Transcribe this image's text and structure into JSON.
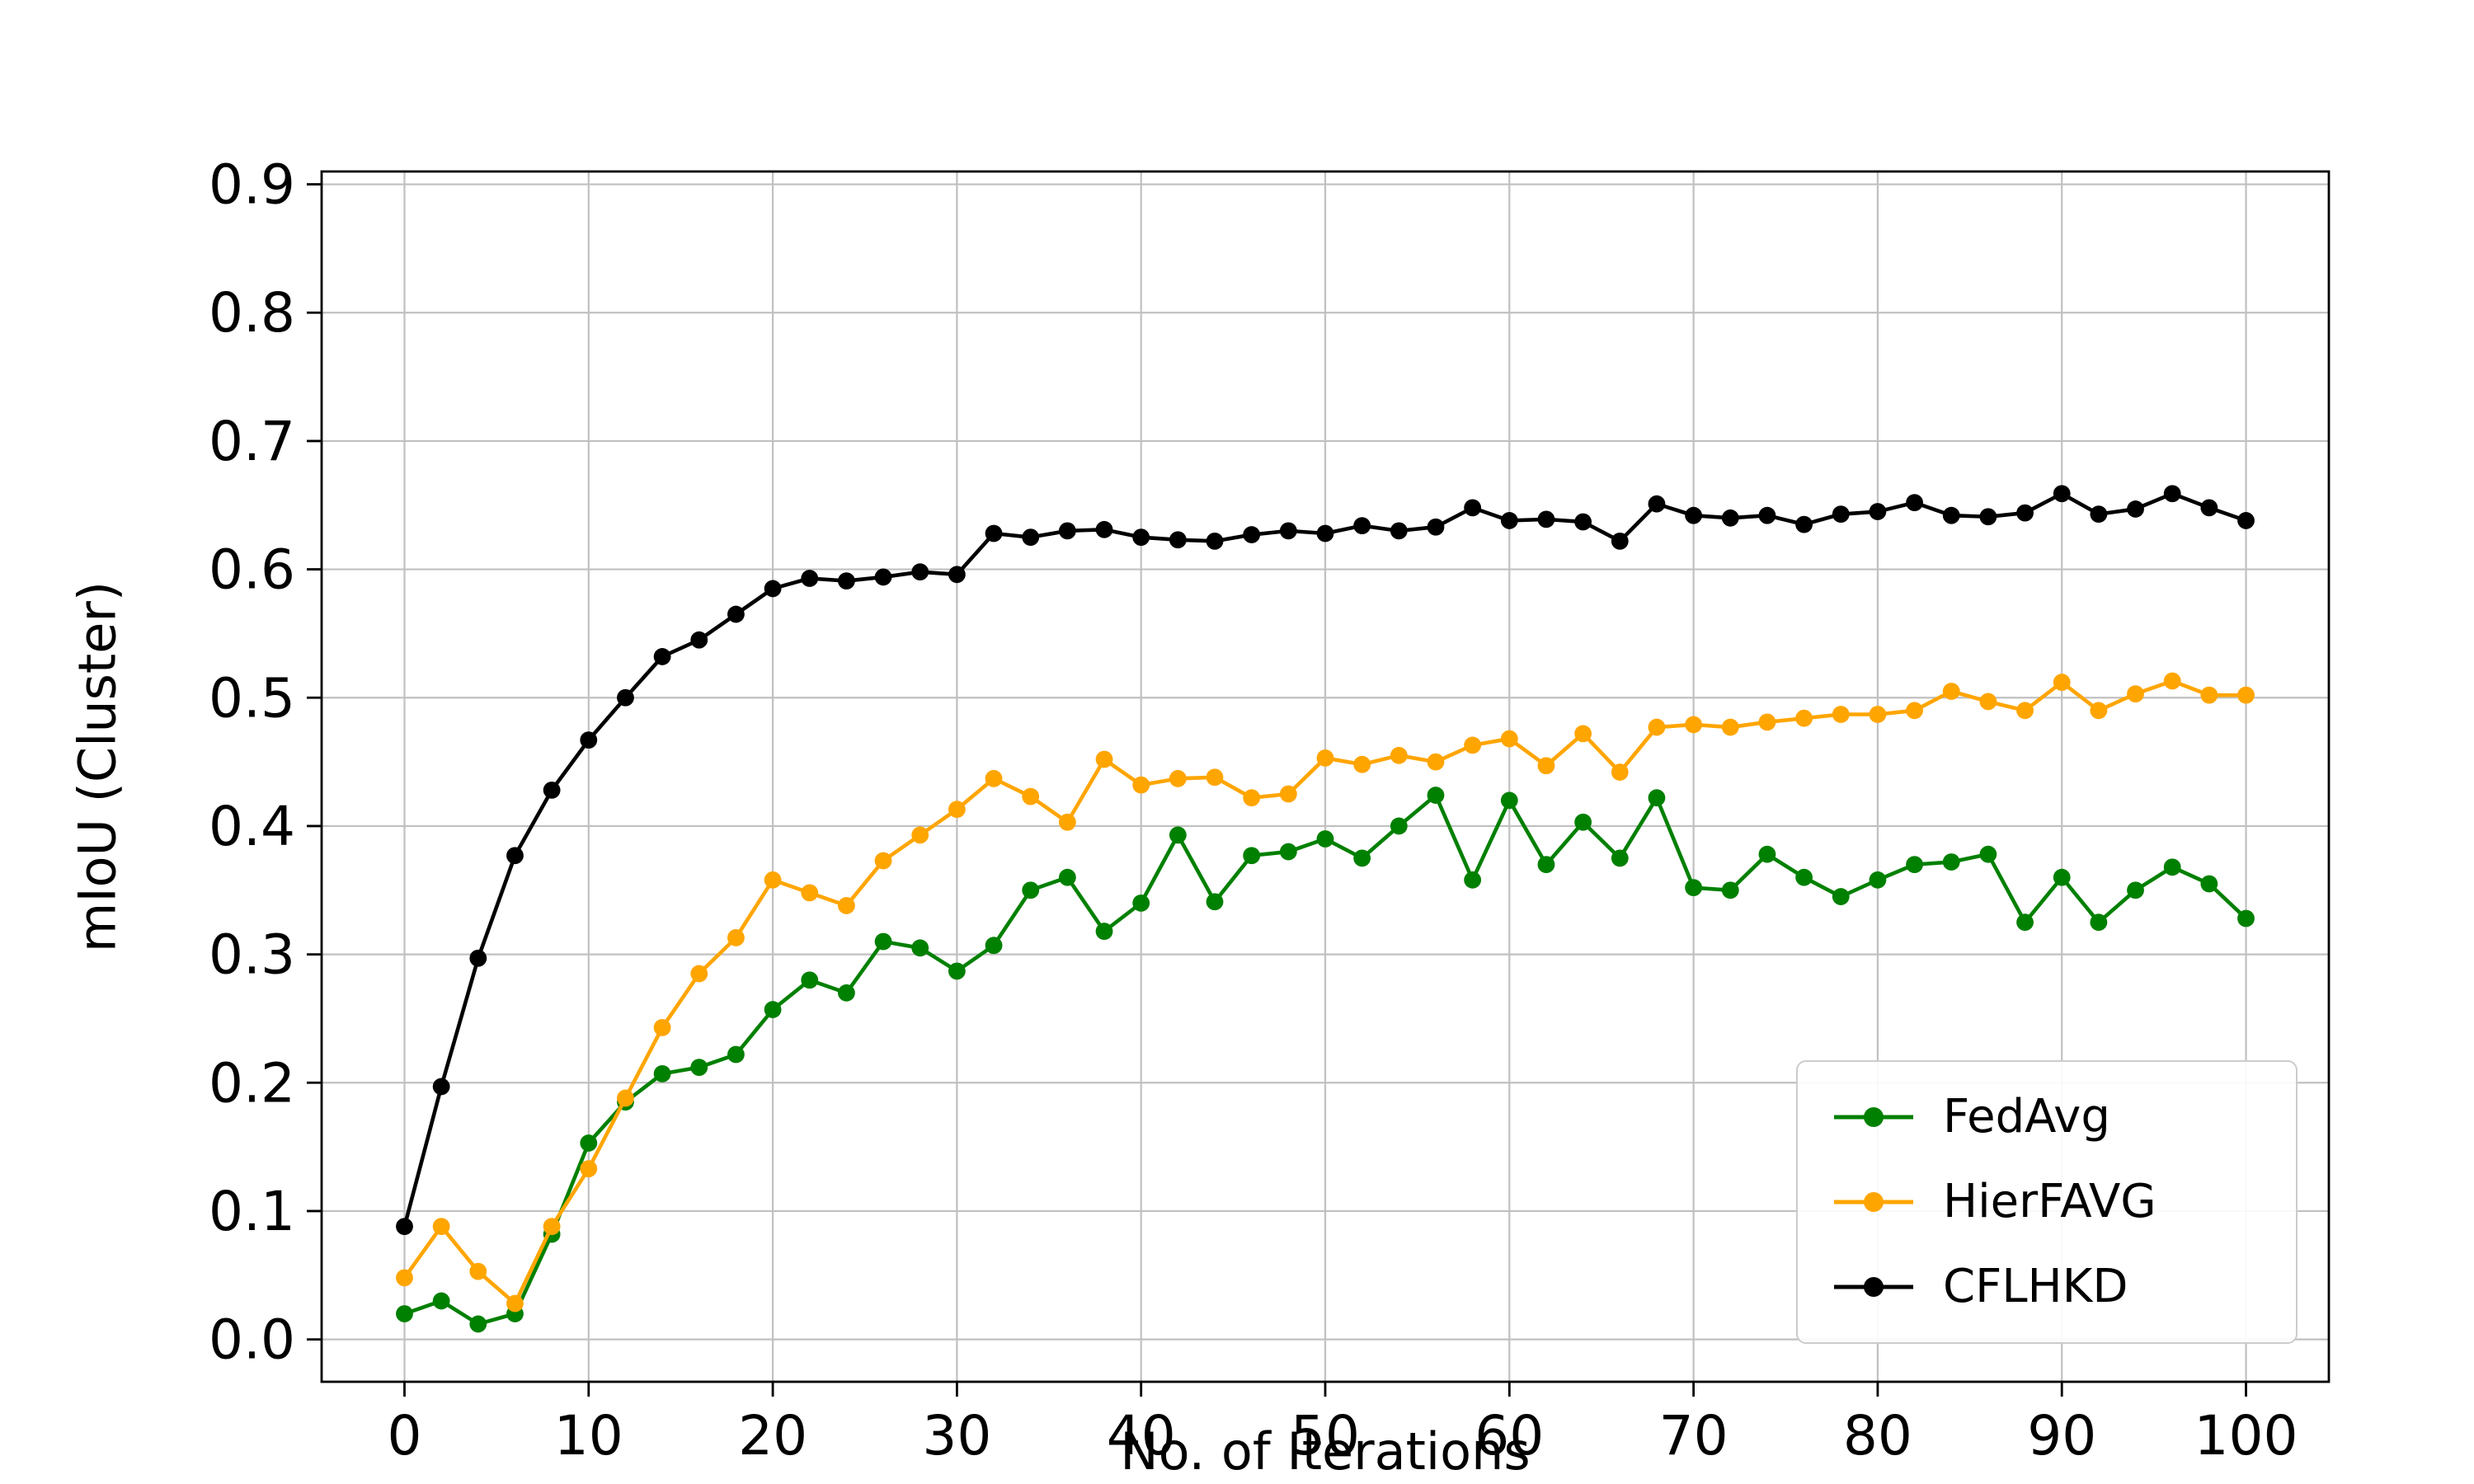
{
  "chart_data": {
    "type": "line",
    "title": "",
    "xlabel": "No. of Iterations",
    "ylabel": "mIoU (Cluster)",
    "xlim": [
      -4.5,
      104.5
    ],
    "ylim": [
      -0.033,
      0.91
    ],
    "xticks": [
      0,
      10,
      20,
      30,
      40,
      50,
      60,
      70,
      80,
      90,
      100
    ],
    "yticks": [
      0.0,
      0.1,
      0.2,
      0.3,
      0.4,
      0.5,
      0.6,
      0.7,
      0.8,
      0.9
    ],
    "grid": true,
    "grid_color": "#c0c0c0",
    "background": "#ffffff",
    "legend_position": "lower right",
    "x": [
      0,
      2,
      4,
      6,
      8,
      10,
      12,
      14,
      16,
      18,
      20,
      22,
      24,
      26,
      28,
      30,
      32,
      34,
      36,
      38,
      40,
      42,
      44,
      46,
      48,
      50,
      52,
      54,
      56,
      58,
      60,
      62,
      64,
      66,
      68,
      70,
      72,
      74,
      76,
      78,
      80,
      82,
      84,
      86,
      88,
      90,
      92,
      94,
      96,
      98,
      100
    ],
    "series": [
      {
        "name": "FedAvg",
        "color": "#008000",
        "values": [
          0.02,
          0.03,
          0.012,
          0.02,
          0.082,
          0.153,
          0.185,
          0.207,
          0.212,
          0.222,
          0.257,
          0.28,
          0.27,
          0.31,
          0.305,
          0.287,
          0.307,
          0.35,
          0.36,
          0.318,
          0.34,
          0.393,
          0.341,
          0.377,
          0.38,
          0.39,
          0.375,
          0.4,
          0.424,
          0.358,
          0.42,
          0.37,
          0.403,
          0.375,
          0.422,
          0.352,
          0.35,
          0.378,
          0.36,
          0.345,
          0.358,
          0.37,
          0.372,
          0.378,
          0.325,
          0.36,
          0.325,
          0.35,
          0.368,
          0.355,
          0.328
        ]
      },
      {
        "name": "HierFAVG",
        "color": "#FFA500",
        "values": [
          0.048,
          0.088,
          0.053,
          0.028,
          0.088,
          0.133,
          0.188,
          0.243,
          0.285,
          0.313,
          0.358,
          0.348,
          0.338,
          0.373,
          0.393,
          0.413,
          0.437,
          0.423,
          0.403,
          0.452,
          0.432,
          0.437,
          0.438,
          0.422,
          0.425,
          0.453,
          0.448,
          0.455,
          0.45,
          0.463,
          0.468,
          0.447,
          0.472,
          0.442,
          0.477,
          0.479,
          0.477,
          0.481,
          0.484,
          0.487,
          0.487,
          0.49,
          0.505,
          0.497,
          0.49,
          0.512,
          0.49,
          0.503,
          0.513,
          0.502,
          0.502
        ]
      },
      {
        "name": "CFLHKD",
        "color": "#000000",
        "values": [
          0.088,
          0.197,
          0.297,
          0.377,
          0.428,
          0.467,
          0.5,
          0.532,
          0.545,
          0.565,
          0.585,
          0.593,
          0.591,
          0.594,
          0.598,
          0.596,
          0.628,
          0.625,
          0.63,
          0.631,
          0.625,
          0.623,
          0.622,
          0.627,
          0.63,
          0.628,
          0.634,
          0.63,
          0.633,
          0.648,
          0.638,
          0.639,
          0.637,
          0.622,
          0.651,
          0.642,
          0.64,
          0.642,
          0.635,
          0.643,
          0.645,
          0.652,
          0.642,
          0.641,
          0.644,
          0.659,
          0.643,
          0.647,
          0.659,
          0.648,
          0.638
        ]
      }
    ]
  }
}
